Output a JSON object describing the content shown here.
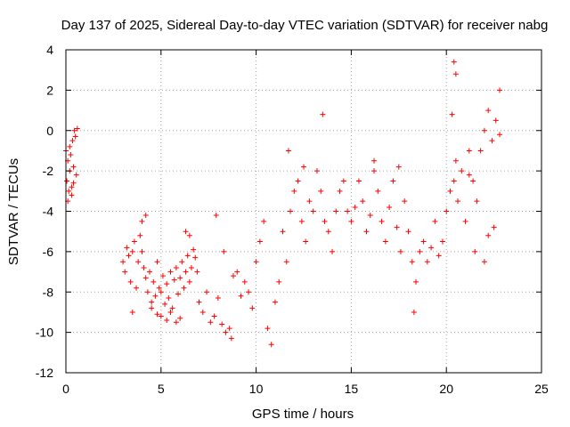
{
  "chart_data": {
    "type": "scatter",
    "title": "Day 137 of 2025, Sidereal Day-to-day VTEC variation (SDTVAR) for receiver nabg",
    "xlabel": "GPS time / hours",
    "ylabel": "SDTVAR / TECUs",
    "xlim": [
      0,
      25
    ],
    "ylim": [
      -12,
      4
    ],
    "xticks": [
      0,
      5,
      10,
      15,
      20,
      25
    ],
    "yticks": [
      -12,
      -10,
      -8,
      -6,
      -4,
      -2,
      0,
      2,
      4
    ],
    "xtick_labels": [
      "0",
      "5",
      "10",
      "15",
      "20",
      "25"
    ],
    "ytick_labels": [
      "-12",
      "-10",
      "-8",
      "-6",
      "-4",
      "-2",
      "0",
      "2",
      "4"
    ],
    "grid": true,
    "marker": "+",
    "color": "#ff0000",
    "series": [
      {
        "name": "SDTVAR",
        "x": [
          0.0,
          0.05,
          0.1,
          0.15,
          0.2,
          0.25,
          0.3,
          0.35,
          0.4,
          0.45,
          0.5,
          0.55,
          0.6,
          0.1,
          0.2,
          0.3,
          0.4,
          3.0,
          3.1,
          3.2,
          3.3,
          3.4,
          3.5,
          3.6,
          3.7,
          3.8,
          3.9,
          4.0,
          4.1,
          4.2,
          4.3,
          4.4,
          4.5,
          4.6,
          4.7,
          4.8,
          4.9,
          5.0,
          5.1,
          5.2,
          5.3,
          5.4,
          5.5,
          5.6,
          5.7,
          5.8,
          5.9,
          6.0,
          6.1,
          6.2,
          6.3,
          6.4,
          6.5,
          6.6,
          6.7,
          6.8,
          6.9,
          3.5,
          4.0,
          4.5,
          5.0,
          5.5,
          6.0,
          6.5,
          4.2,
          4.8,
          5.3,
          5.8,
          6.3,
          7.0,
          7.2,
          7.4,
          7.6,
          7.8,
          8.0,
          8.2,
          8.4,
          8.6,
          8.8,
          9.0,
          9.2,
          9.4,
          9.6,
          9.8,
          10.0,
          10.2,
          10.4,
          10.6,
          7.9,
          8.3,
          8.7,
          10.8,
          11.0,
          11.2,
          11.4,
          11.6,
          11.8,
          12.0,
          12.2,
          12.4,
          12.6,
          12.8,
          13.0,
          13.2,
          13.4,
          13.6,
          13.8,
          14.0,
          14.2,
          14.4,
          14.6,
          14.8,
          11.7,
          12.5,
          13.5,
          15.0,
          15.2,
          15.4,
          15.6,
          15.8,
          16.0,
          16.2,
          16.4,
          16.6,
          16.8,
          17.0,
          17.2,
          17.4,
          17.6,
          17.8,
          18.0,
          18.2,
          18.4,
          18.6,
          18.8,
          19.0,
          19.2,
          19.4,
          19.6,
          19.8,
          16.2,
          17.5,
          18.3,
          20.0,
          20.2,
          20.4,
          20.5,
          20.6,
          20.8,
          21.0,
          21.2,
          21.4,
          21.6,
          21.8,
          22.0,
          22.2,
          22.4,
          22.6,
          22.8,
          20.4,
          20.5,
          21.5,
          22.0,
          22.5,
          22.8,
          20.3,
          21.2,
          22.2
        ],
        "y": [
          -1.0,
          -2.5,
          -1.5,
          -3.0,
          -2.0,
          -1.2,
          -2.8,
          -0.5,
          -1.8,
          0.0,
          -0.3,
          -2.2,
          0.1,
          -3.5,
          -0.8,
          -3.2,
          -2.6,
          -6.5,
          -7.0,
          -5.8,
          -6.2,
          -7.5,
          -6.0,
          -5.5,
          -7.8,
          -6.5,
          -5.2,
          -6.0,
          -6.8,
          -7.3,
          -8.0,
          -7.0,
          -8.5,
          -7.5,
          -8.2,
          -6.5,
          -7.8,
          -8.0,
          -7.2,
          -8.6,
          -7.6,
          -8.3,
          -7.0,
          -8.8,
          -7.4,
          -6.8,
          -8.1,
          -7.3,
          -6.5,
          -7.8,
          -7.0,
          -6.2,
          -7.5,
          -6.8,
          -5.9,
          -6.3,
          -7.0,
          -9.0,
          -4.5,
          -8.8,
          -9.2,
          -9.0,
          -9.3,
          -5.2,
          -4.2,
          -9.1,
          -9.4,
          -9.5,
          -5.0,
          -8.5,
          -9.0,
          -8.0,
          -9.5,
          -9.2,
          -8.3,
          -9.6,
          -10.0,
          -9.8,
          -7.2,
          -7.0,
          -8.2,
          -7.5,
          -8.0,
          -8.8,
          -6.5,
          -5.5,
          -4.5,
          -9.8,
          -4.2,
          -6.0,
          -10.3,
          -10.6,
          -8.5,
          -7.5,
          -5.0,
          -6.5,
          -4.0,
          -3.0,
          -2.5,
          -4.5,
          -5.5,
          -3.5,
          -4.0,
          -2.0,
          -3.0,
          -4.5,
          -5.0,
          -6.0,
          -4.0,
          -3.0,
          -2.5,
          -4.0,
          -1.0,
          -1.8,
          0.8,
          -4.5,
          -3.8,
          -2.5,
          -3.5,
          -5.0,
          -4.2,
          -2.0,
          -3.0,
          -4.5,
          -5.5,
          -3.8,
          -2.5,
          -4.8,
          -6.0,
          -3.5,
          -5.0,
          -6.5,
          -7.5,
          -6.0,
          -5.5,
          -6.5,
          -5.8,
          -4.5,
          -6.2,
          -5.5,
          -1.5,
          -1.8,
          -9.0,
          -4.0,
          -3.0,
          -2.5,
          -1.5,
          -3.5,
          -2.0,
          -4.5,
          -1.0,
          -2.5,
          -3.5,
          -1.0,
          0.0,
          1.0,
          -0.5,
          0.5,
          2.0,
          3.4,
          2.8,
          -6.0,
          -6.5,
          -4.8,
          -0.2,
          0.8,
          -2.2,
          -5.2
        ]
      }
    ]
  }
}
